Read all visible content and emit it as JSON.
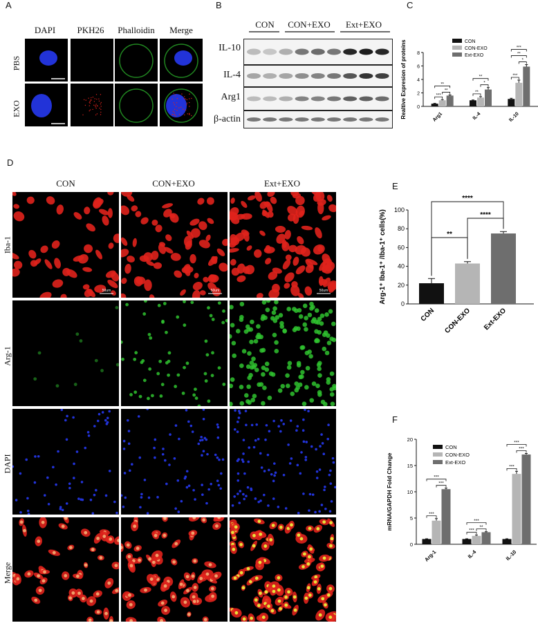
{
  "panel_labels": {
    "a": "A",
    "b": "B",
    "c": "C",
    "d": "D",
    "e": "E",
    "f": "F"
  },
  "panelA": {
    "columns": [
      "DAPI",
      "PKH26",
      "Phalloidin",
      "Merge"
    ],
    "rows": [
      "PBS",
      "EXO"
    ]
  },
  "panelB": {
    "groups": [
      "CON",
      "CON+EXO",
      "Ext+EXO"
    ],
    "bands": [
      "IL-10",
      "IL-4",
      "Arg1",
      "β-actin"
    ]
  },
  "panelD": {
    "columns": [
      "CON",
      "CON+EXO",
      "Ext+EXO"
    ],
    "rows": [
      "Iba-1",
      "Arg-1",
      "DAPI",
      "Merge"
    ],
    "scalebar": "50um"
  },
  "colors": {
    "con": "#111111",
    "con_exo": "#b5b5b5",
    "ext_exo": "#6e6e6e",
    "red": "#e0221c",
    "green": "#2fc22f",
    "blue": "#2233d8"
  },
  "chart_data": [
    {
      "id": "C",
      "type": "bar",
      "ylabel": "Realtive Expresion of proteins",
      "ylim": [
        0,
        8
      ],
      "yticks": [
        "0",
        "2",
        "4",
        "6",
        "8"
      ],
      "categories": [
        "Arg1",
        "IL-4",
        "IL-10"
      ],
      "legend": [
        "CON",
        "CON-EXO",
        "Ext-EXO"
      ],
      "series": [
        {
          "name": "CON",
          "values": [
            0.4,
            0.9,
            1.1
          ]
        },
        {
          "name": "CON-EXO",
          "values": [
            0.9,
            1.3,
            3.5
          ]
        },
        {
          "name": "Ext-EXO",
          "values": [
            1.6,
            2.5,
            5.9
          ]
        }
      ],
      "errors": [
        [
          0.05,
          0.05,
          0.1
        ],
        [
          0.1,
          0.15,
          0.4
        ],
        [
          0.1,
          0.3,
          0.3
        ]
      ],
      "sig": [
        "***",
        "**",
        "**",
        "**",
        "*",
        "**",
        "***",
        "*",
        "**",
        "***"
      ]
    },
    {
      "id": "E",
      "type": "bar",
      "ylabel": "Arg-1⁺ Iba-1⁺ /Iba-1⁺ cells(%)",
      "ylim": [
        0,
        100
      ],
      "yticks": [
        "0",
        "20",
        "40",
        "60",
        "80",
        "100"
      ],
      "categories": [
        "CON",
        "CON-EXO",
        "Ext-EXO"
      ],
      "values": [
        22,
        43,
        75
      ],
      "errors": [
        5,
        2,
        2
      ],
      "sig": [
        "****",
        "****",
        "**"
      ]
    },
    {
      "id": "F",
      "type": "bar",
      "ylabel": "mRNA/GAPDH Fold Change",
      "ylim": [
        0,
        20
      ],
      "yticks": [
        "0",
        "5",
        "10",
        "15",
        "20"
      ],
      "categories": [
        "Arg-1",
        "IL-4",
        "IL-10"
      ],
      "legend": [
        "CON",
        "CON-EXO",
        "Ext-EXO"
      ],
      "series": [
        {
          "name": "CON",
          "values": [
            1,
            1,
            1
          ]
        },
        {
          "name": "CON-EXO",
          "values": [
            4.5,
            1.6,
            13.4
          ]
        },
        {
          "name": "Ext-EXO",
          "values": [
            10.5,
            2.3,
            17.1
          ]
        }
      ],
      "errors": [
        [
          0.05,
          0.05,
          0.05
        ],
        [
          0.4,
          0.15,
          0.5
        ],
        [
          0.2,
          0.1,
          0.2
        ]
      ],
      "sig": [
        "***",
        "***",
        "***",
        "***",
        "**",
        "***",
        "***",
        "***",
        "***"
      ]
    }
  ]
}
